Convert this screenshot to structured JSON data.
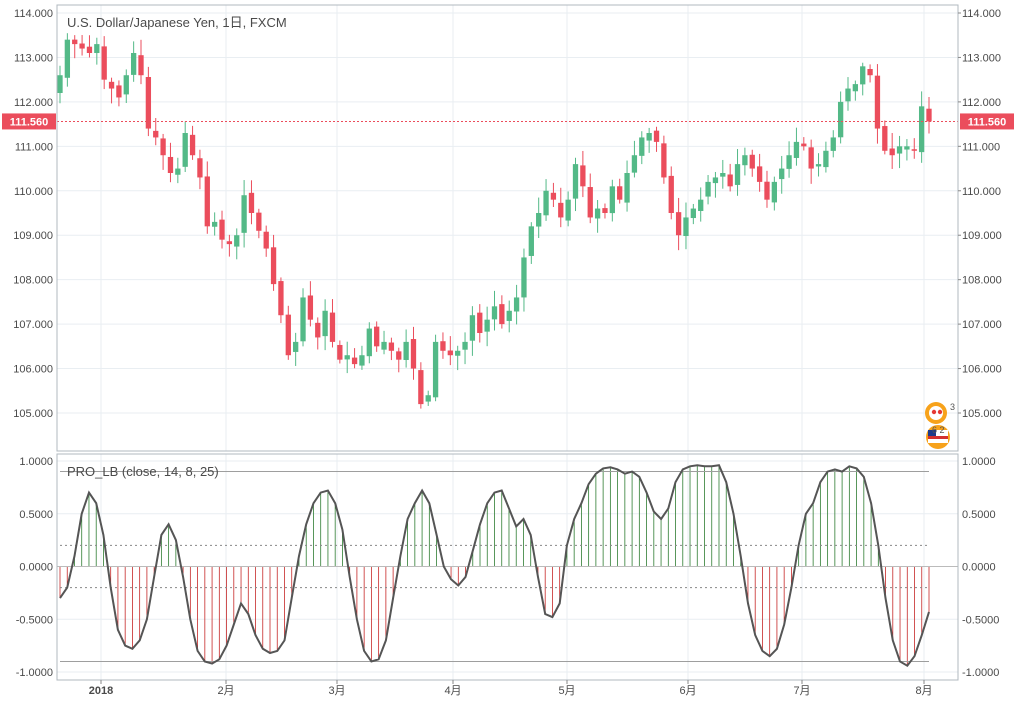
{
  "price_panel": {
    "title": "U.S. Dollar/Japanese Yen, 1日, FXCM",
    "price_label": "111.560",
    "icon_badge": "3",
    "icon_badge2": "6 2"
  },
  "indicator_panel": {
    "title": "PRO_LB (close, 14, 8, 25)"
  },
  "colors": {
    "up": "#53b987",
    "down": "#eb4d5c",
    "hist_pos": "#2e7d32",
    "hist_neg": "#c62828",
    "line": "#555555",
    "price_tag": "#eb4d5c",
    "grid": "#e9eef2"
  },
  "chart_data": [
    {
      "type": "candlestick",
      "title": "U.S. Dollar/Japanese Yen, 1日, FXCM",
      "ylim": [
        104.3,
        114.0
      ],
      "y_ticks": [
        "114.000",
        "113.000",
        "112.000",
        "111.000",
        "110.000",
        "109.000",
        "108.000",
        "107.000",
        "106.000",
        "105.000"
      ],
      "x_ticks": [
        "2018",
        "2月",
        "3月",
        "4月",
        "5月",
        "6月",
        "7月",
        "8月"
      ],
      "last_price": 111.56,
      "closes": [
        112.6,
        113.4,
        113.3,
        113.2,
        113.1,
        113.3,
        112.5,
        112.3,
        112.1,
        112.6,
        113.1,
        112.6,
        111.4,
        111.2,
        110.8,
        110.4,
        110.5,
        111.3,
        110.8,
        110.3,
        109.2,
        109.3,
        108.9,
        108.8,
        109.0,
        109.9,
        109.5,
        109.1,
        108.7,
        107.9,
        107.2,
        106.3,
        106.6,
        107.6,
        107.1,
        106.7,
        107.3,
        106.6,
        106.2,
        106.3,
        106.1,
        106.3,
        106.9,
        106.5,
        106.6,
        106.4,
        106.2,
        106.6,
        106.0,
        105.2,
        105.4,
        106.6,
        106.4,
        106.3,
        106.4,
        106.6,
        107.2,
        106.8,
        107.1,
        107.4,
        107.0,
        107.3,
        107.6,
        108.5,
        109.2,
        109.5,
        110.0,
        109.8,
        109.4,
        109.8,
        110.6,
        110.1,
        109.4,
        109.6,
        109.5,
        110.1,
        109.8,
        110.4,
        110.8,
        111.2,
        111.3,
        111.1,
        110.3,
        109.5,
        109.0,
        109.4,
        109.6,
        109.8,
        110.2,
        110.3,
        110.4,
        110.1,
        110.6,
        110.8,
        110.5,
        110.2,
        109.8,
        110.2,
        110.5,
        110.8,
        111.1,
        111.0,
        110.5,
        110.6,
        110.9,
        111.2,
        112.0,
        112.3,
        112.4,
        112.8,
        112.6,
        111.4,
        110.9,
        110.8,
        111.0,
        111.0,
        110.9,
        111.9,
        111.56
      ],
      "volatility": 0.45
    },
    {
      "type": "bar-line",
      "title": "PRO_LB (close, 14, 8, 25)",
      "ylim": [
        -1.0,
        1.0
      ],
      "y_ticks": [
        "1.0000",
        "0.5000",
        "0.0000",
        "-0.5000",
        "-1.0000"
      ],
      "levels": [
        0.9,
        0.2,
        -0.2,
        -0.9
      ],
      "values": [
        -0.3,
        -0.2,
        0.1,
        0.5,
        0.7,
        0.6,
        0.3,
        -0.2,
        -0.6,
        -0.75,
        -0.78,
        -0.7,
        -0.5,
        -0.1,
        0.3,
        0.4,
        0.25,
        -0.1,
        -0.5,
        -0.8,
        -0.9,
        -0.92,
        -0.88,
        -0.75,
        -0.55,
        -0.35,
        -0.45,
        -0.65,
        -0.78,
        -0.82,
        -0.8,
        -0.7,
        -0.3,
        0.1,
        0.4,
        0.6,
        0.7,
        0.72,
        0.6,
        0.35,
        -0.1,
        -0.5,
        -0.8,
        -0.9,
        -0.88,
        -0.7,
        -0.3,
        0.1,
        0.45,
        0.6,
        0.72,
        0.6,
        0.3,
        0.0,
        -0.12,
        -0.18,
        -0.1,
        0.15,
        0.4,
        0.6,
        0.7,
        0.72,
        0.55,
        0.38,
        0.45,
        0.3,
        -0.1,
        -0.45,
        -0.48,
        -0.35,
        0.2,
        0.45,
        0.6,
        0.78,
        0.88,
        0.93,
        0.94,
        0.92,
        0.88,
        0.9,
        0.85,
        0.7,
        0.52,
        0.45,
        0.55,
        0.8,
        0.92,
        0.95,
        0.96,
        0.95,
        0.95,
        0.96,
        0.8,
        0.5,
        0.1,
        -0.35,
        -0.65,
        -0.8,
        -0.85,
        -0.78,
        -0.55,
        -0.2,
        0.2,
        0.5,
        0.6,
        0.8,
        0.9,
        0.92,
        0.9,
        0.95,
        0.93,
        0.85,
        0.6,
        0.2,
        -0.3,
        -0.7,
        -0.9,
        -0.94,
        -0.85,
        -0.65,
        -0.43
      ]
    }
  ]
}
